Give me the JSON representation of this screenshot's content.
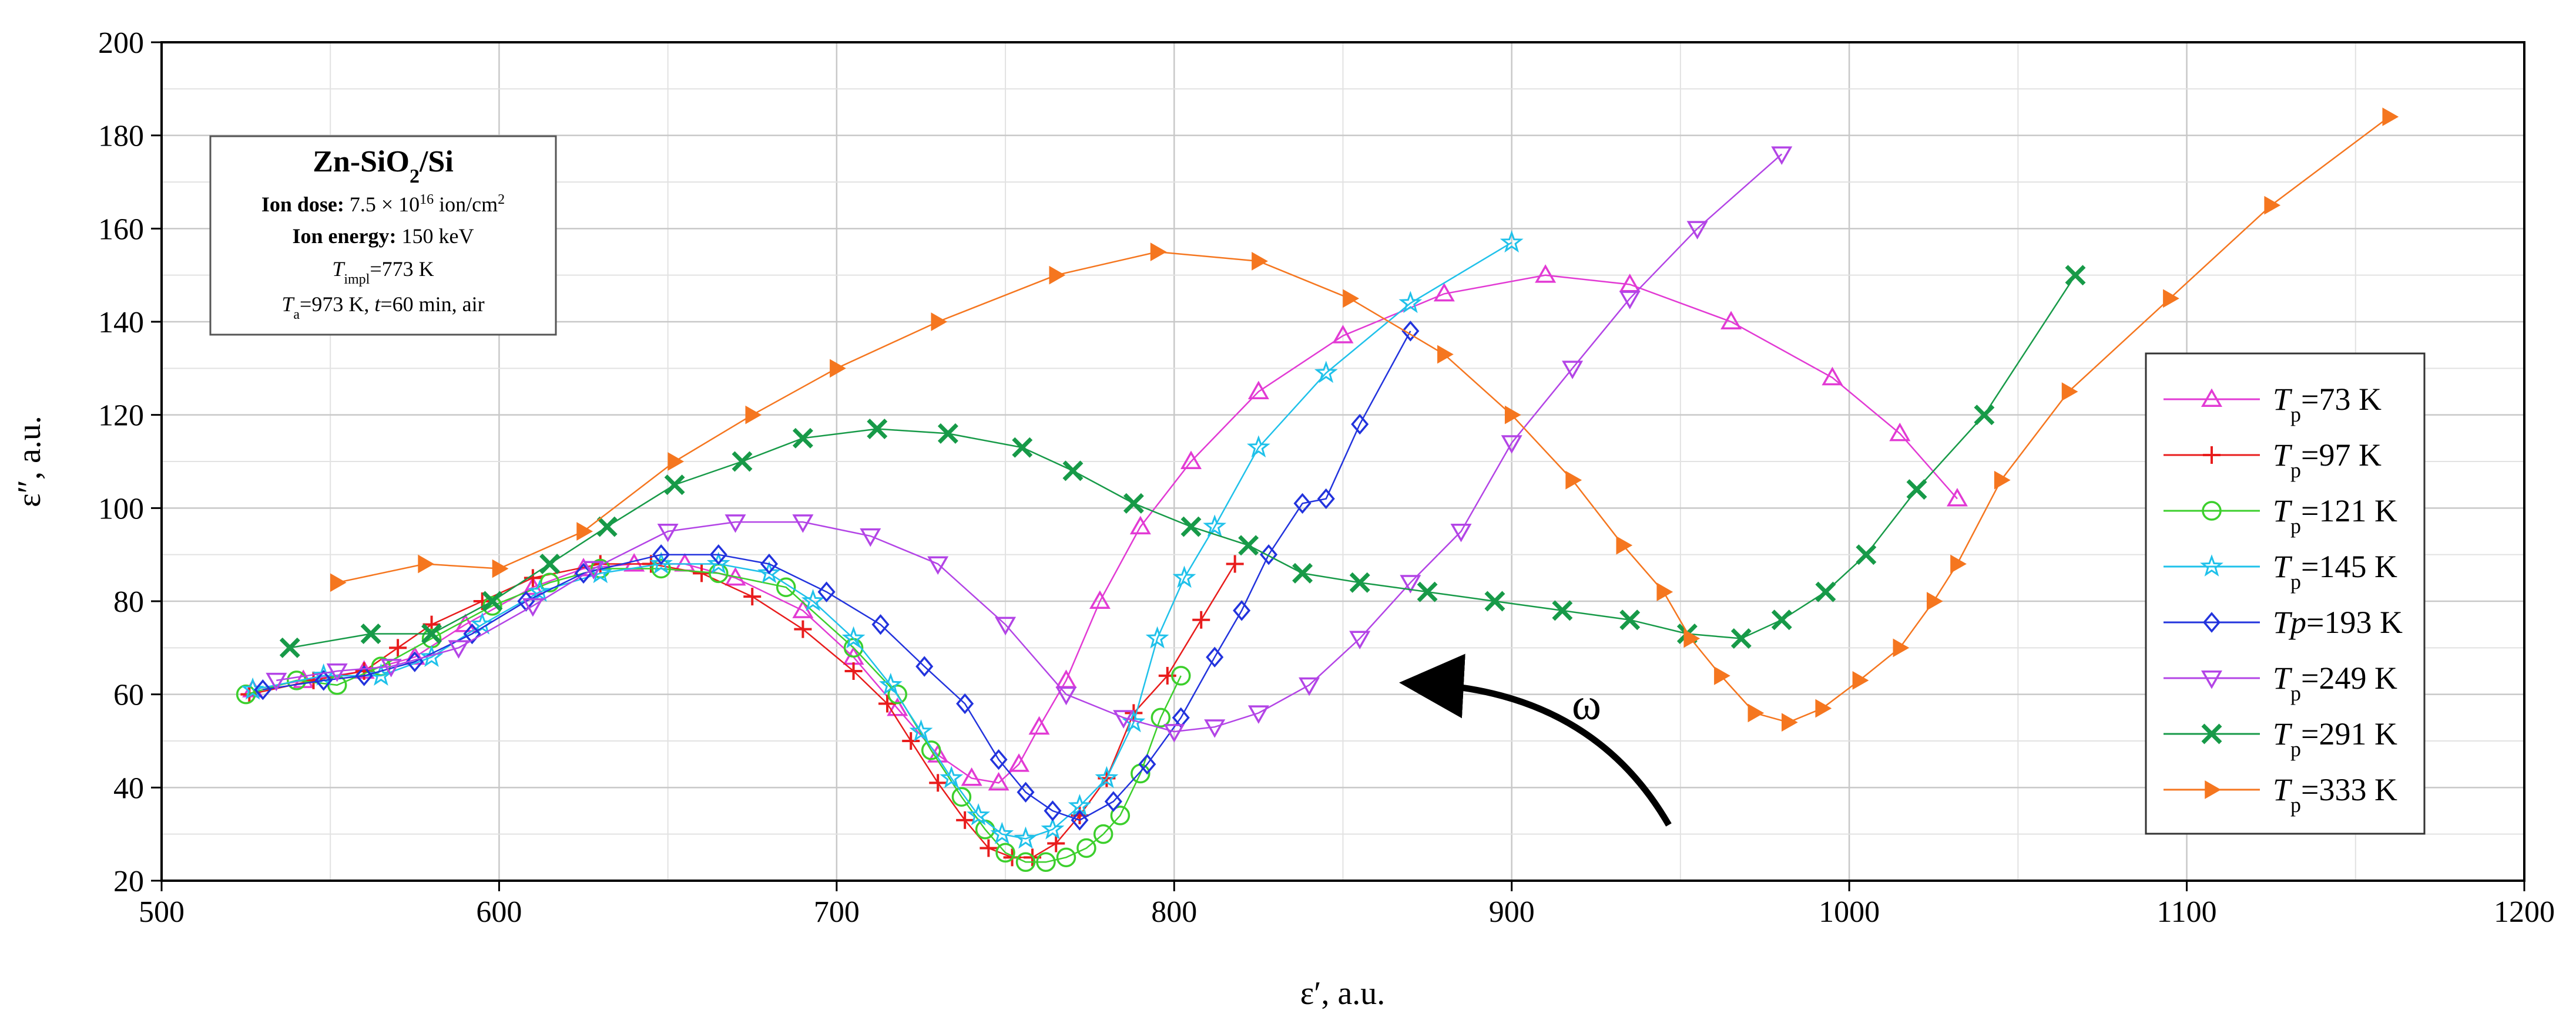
{
  "chart_data": {
    "type": "line",
    "xlabel": "ε′, a.u.",
    "ylabel": "ε″, a.u.",
    "xlim": [
      500,
      1200
    ],
    "ylim": [
      20,
      200
    ],
    "xticks": [
      500,
      600,
      700,
      800,
      900,
      1000,
      1100,
      1200
    ],
    "yticks": [
      20,
      40,
      60,
      80,
      100,
      120,
      140,
      160,
      180,
      200
    ],
    "grid": true,
    "legend_position": "right",
    "annotation": "ω",
    "info_box": {
      "title_main": "Zn-SiO",
      "title_sub": "2",
      "title_end": "/Si",
      "dose_label": "Ion dose:",
      "dose_value": " 7.5 × 10",
      "dose_exp": "16",
      "dose_unit": " ion/cm",
      "dose_unit_exp": "2",
      "energy_label": "Ion energy:",
      "energy_value": " 150 keV",
      "timpl_T": "T",
      "timpl_sub": "impl",
      "timpl_value": "=773 K",
      "anneal_T": "T",
      "anneal_sub": "a",
      "anneal_value": "=973 K, ",
      "anneal_t": "t",
      "anneal_rest": "=60 min, air"
    },
    "series": [
      {
        "name": "Tp=73 K",
        "label_T": "T",
        "label_sub": "p",
        "label_val": "=73 K",
        "marker": "triangle-up-open",
        "color": "#e23ad4",
        "x": [
          527,
          542,
          560,
          575,
          590,
          610,
          625,
          640,
          655,
          670,
          690,
          705,
          718,
          730,
          740,
          748,
          754,
          760,
          768,
          778,
          790,
          805,
          825,
          850,
          880,
          910,
          935,
          965,
          995,
          1015,
          1032
        ],
        "y": [
          61,
          63,
          65,
          68,
          75,
          83,
          87,
          88,
          88,
          85,
          78,
          68,
          57,
          47,
          42,
          41,
          45,
          53,
          63,
          80,
          96,
          110,
          125,
          137,
          146,
          150,
          148,
          140,
          128,
          116,
          102
        ]
      },
      {
        "name": "Tp=97 K",
        "label_T": "T",
        "label_sub": "p",
        "label_val": "=97 K",
        "marker": "plus",
        "color": "#e81c1c",
        "x": [
          526,
          545,
          560,
          570,
          580,
          595,
          610,
          630,
          645,
          660,
          675,
          690,
          705,
          715,
          722,
          730,
          738,
          745,
          752,
          758,
          765,
          772,
          780,
          788,
          798,
          808,
          818
        ],
        "y": [
          60,
          63,
          65,
          70,
          75,
          80,
          85,
          88,
          88,
          86,
          81,
          74,
          65,
          58,
          50,
          41,
          33,
          27,
          25,
          25,
          28,
          34,
          42,
          56,
          64,
          76,
          88
        ]
      },
      {
        "name": "Tp=121 K",
        "label_T": "T",
        "label_sub": "p",
        "label_val": "=121 K",
        "marker": "circle-open",
        "color": "#3ccf2c",
        "x": [
          525,
          540,
          552,
          565,
          580,
          598,
          615,
          630,
          648,
          665,
          685,
          705,
          718,
          728,
          737,
          744,
          750,
          756,
          762,
          768,
          774,
          779,
          784,
          790,
          796,
          802
        ],
        "y": [
          60,
          63,
          62,
          66,
          72,
          79,
          84,
          87,
          87,
          86,
          83,
          70,
          60,
          48,
          38,
          31,
          26,
          24,
          24,
          25,
          27,
          30,
          34,
          43,
          55,
          64
        ]
      },
      {
        "name": "Tp=145 K",
        "label_T": "T",
        "label_sub": "p",
        "label_val": "=145 K",
        "marker": "star-open",
        "color": "#1fc1ea",
        "x": [
          527,
          548,
          565,
          580,
          595,
          612,
          630,
          648,
          665,
          680,
          693,
          705,
          716,
          725,
          734,
          742,
          749,
          756,
          764,
          772,
          780,
          788,
          795,
          803,
          812,
          825,
          845,
          870,
          900
        ],
        "y": [
          61,
          64,
          64,
          68,
          75,
          82,
          86,
          88,
          88,
          86,
          80,
          72,
          62,
          52,
          42,
          34,
          30,
          29,
          31,
          36,
          42,
          54,
          72,
          85,
          96,
          113,
          129,
          144,
          157
        ]
      },
      {
        "name": "Tp=193 K",
        "label_T": "Tp",
        "label_sub": "",
        "label_val": "=193 K",
        "marker": "diamond-open",
        "color": "#2233dd",
        "x": [
          530,
          548,
          560,
          575,
          592,
          608,
          625,
          648,
          665,
          680,
          697,
          713,
          726,
          738,
          748,
          756,
          764,
          772,
          782,
          792,
          802,
          812,
          820,
          828,
          838,
          845,
          855,
          870
        ],
        "y": [
          61,
          63,
          64,
          67,
          73,
          80,
          86,
          90,
          90,
          88,
          82,
          75,
          66,
          58,
          46,
          39,
          35,
          33,
          37,
          45,
          55,
          68,
          78,
          90,
          101,
          102,
          118,
          138
        ]
      },
      {
        "name": "Tp=249 K",
        "label_T": "T",
        "label_sub": "p",
        "label_val": "=249 K",
        "marker": "triangle-down-open",
        "color": "#b344e6",
        "x": [
          534,
          552,
          568,
          588,
          610,
          628,
          650,
          670,
          690,
          710,
          730,
          750,
          768,
          785,
          800,
          812,
          825,
          840,
          855,
          870,
          885,
          900,
          918,
          935,
          955,
          980
        ],
        "y": [
          63,
          65,
          66,
          70,
          79,
          87,
          95,
          97,
          97,
          94,
          88,
          75,
          60,
          55,
          52,
          53,
          56,
          62,
          72,
          84,
          95,
          114,
          130,
          145,
          160,
          176
        ]
      },
      {
        "name": "Tp=291 K",
        "label_T": "T",
        "label_sub": "p",
        "label_val": "=291 K",
        "marker": "x",
        "color": "#179a48",
        "x": [
          538,
          562,
          580,
          598,
          615,
          632,
          652,
          672,
          690,
          712,
          733,
          755,
          770,
          788,
          805,
          822,
          838,
          855,
          875,
          895,
          915,
          935,
          952,
          968,
          980,
          993,
          1005,
          1020,
          1040,
          1067
        ],
        "y": [
          70,
          73,
          73,
          80,
          88,
          96,
          105,
          110,
          115,
          117,
          116,
          113,
          108,
          101,
          96,
          92,
          86,
          84,
          82,
          80,
          78,
          76,
          73,
          72,
          76,
          82,
          90,
          104,
          120,
          150
        ]
      },
      {
        "name": "Tp=333 K",
        "label_T": "T",
        "label_sub": "p",
        "label_val": "=333 K",
        "marker": "triangle-right-filled",
        "color": "#f5761f",
        "x": [
          552,
          578,
          600,
          625,
          652,
          675,
          700,
          730,
          765,
          795,
          825,
          852,
          880,
          900,
          918,
          933,
          945,
          953,
          962,
          972,
          982,
          992,
          1003,
          1015,
          1025,
          1032,
          1045,
          1065,
          1095,
          1125,
          1160
        ],
        "y": [
          84,
          88,
          87,
          95,
          110,
          120,
          130,
          140,
          150,
          155,
          153,
          145,
          133,
          120,
          106,
          92,
          82,
          72,
          64,
          56,
          54,
          57,
          63,
          70,
          80,
          88,
          106,
          125,
          145,
          165,
          184
        ]
      }
    ]
  }
}
